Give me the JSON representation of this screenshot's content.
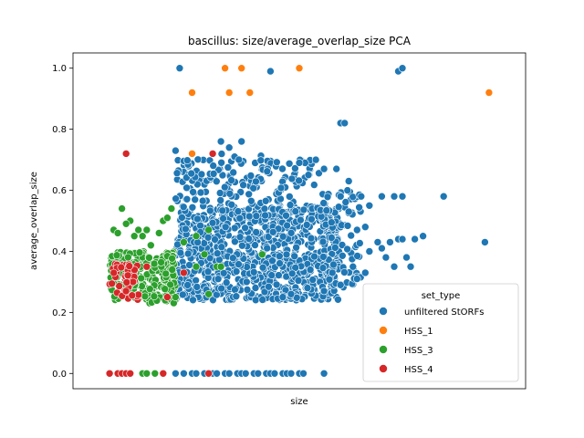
{
  "chart_data": {
    "type": "scatter",
    "title": "bascillus: size/average_overlap_size PCA",
    "xlabel": "size",
    "ylabel": "average_overlap_size",
    "ylim": [
      -0.05,
      1.05
    ],
    "xlim": [
      0,
      100
    ],
    "y_ticks": [
      "0.0",
      "0.2",
      "0.4",
      "0.6",
      "0.8",
      "1.0"
    ],
    "y_tick_values": [
      0.0,
      0.2,
      0.4,
      0.6,
      0.8,
      1.0
    ],
    "grid": false,
    "legend": {
      "title": "set_type",
      "placement": "lower-right"
    },
    "series": [
      {
        "name": "unfiltered StORFs",
        "color": "#1f77b4",
        "clusters": [
          {
            "x": [
              20,
              60
            ],
            "y": [
              0.24,
              0.55
            ],
            "n": 900
          },
          {
            "x": [
              20,
              45
            ],
            "y": [
              0.55,
              0.72
            ],
            "n": 120
          },
          {
            "x": [
              45,
              55
            ],
            "y": [
              0.5,
              0.7
            ],
            "n": 40
          },
          {
            "x": [
              55,
              65
            ],
            "y": [
              0.28,
              0.6
            ],
            "n": 80
          }
        ],
        "points": [
          {
            "x": 21,
            "y": 1.0
          },
          {
            "x": 43,
            "y": 0.99
          },
          {
            "x": 74,
            "y": 0.99
          },
          {
            "x": 75,
            "y": 1.0
          },
          {
            "x": 60,
            "y": 0.82
          },
          {
            "x": 61,
            "y": 0.82
          },
          {
            "x": 31,
            "y": 0.76
          },
          {
            "x": 36,
            "y": 0.76
          },
          {
            "x": 33,
            "y": 0.74
          },
          {
            "x": 20,
            "y": 0.73
          },
          {
            "x": 50,
            "y": 0.69
          },
          {
            "x": 54,
            "y": 0.7
          },
          {
            "x": 56,
            "y": 0.67
          },
          {
            "x": 59,
            "y": 0.67
          },
          {
            "x": 62,
            "y": 0.63
          },
          {
            "x": 60,
            "y": 0.58
          },
          {
            "x": 65,
            "y": 0.58
          },
          {
            "x": 70,
            "y": 0.58
          },
          {
            "x": 73,
            "y": 0.58
          },
          {
            "x": 75,
            "y": 0.58
          },
          {
            "x": 85,
            "y": 0.58
          },
          {
            "x": 67,
            "y": 0.55
          },
          {
            "x": 62,
            "y": 0.53
          },
          {
            "x": 64,
            "y": 0.47
          },
          {
            "x": 66,
            "y": 0.48
          },
          {
            "x": 74,
            "y": 0.44
          },
          {
            "x": 75,
            "y": 0.44
          },
          {
            "x": 78,
            "y": 0.44
          },
          {
            "x": 80,
            "y": 0.45
          },
          {
            "x": 72,
            "y": 0.43
          },
          {
            "x": 70,
            "y": 0.41
          },
          {
            "x": 67,
            "y": 0.4
          },
          {
            "x": 69,
            "y": 0.43
          },
          {
            "x": 71,
            "y": 0.38
          },
          {
            "x": 76,
            "y": 0.38
          },
          {
            "x": 95,
            "y": 0.43
          },
          {
            "x": 73,
            "y": 0.35
          },
          {
            "x": 77,
            "y": 0.35
          },
          {
            "x": 63,
            "y": 0.35
          },
          {
            "x": 66,
            "y": 0.33
          },
          {
            "x": 64,
            "y": 0.31
          },
          {
            "x": 58,
            "y": 0.33
          },
          {
            "x": 60,
            "y": 0.29
          },
          {
            "x": 56,
            "y": 0.27
          },
          {
            "x": 52,
            "y": 0.28
          },
          {
            "x": 48,
            "y": 0.26
          },
          {
            "x": 46,
            "y": 0.25
          }
        ],
        "baseline": {
          "y": 0.0,
          "x": [
            20,
            22,
            24,
            25,
            27,
            29,
            30,
            32,
            33,
            35,
            36,
            37,
            39,
            40,
            42,
            43,
            44,
            46,
            47,
            48,
            50,
            51,
            56
          ]
        }
      },
      {
        "name": "HSS_1",
        "color": "#ff7f0e",
        "points": [
          {
            "x": 32,
            "y": 1.0
          },
          {
            "x": 36,
            "y": 1.0
          },
          {
            "x": 50,
            "y": 1.0
          },
          {
            "x": 24,
            "y": 0.92
          },
          {
            "x": 33,
            "y": 0.92
          },
          {
            "x": 38,
            "y": 0.92
          },
          {
            "x": 96,
            "y": 0.92
          },
          {
            "x": 24,
            "y": 0.72
          }
        ]
      },
      {
        "name": "HSS_3",
        "color": "#2ca02c",
        "clusters": [
          {
            "x": [
              4,
              20
            ],
            "y": [
              0.23,
              0.4
            ],
            "n": 220
          }
        ],
        "points": [
          {
            "x": 7,
            "y": 0.54
          },
          {
            "x": 9,
            "y": 0.5
          },
          {
            "x": 8,
            "y": 0.49
          },
          {
            "x": 11,
            "y": 0.47
          },
          {
            "x": 13,
            "y": 0.47
          },
          {
            "x": 5,
            "y": 0.47
          },
          {
            "x": 6,
            "y": 0.46
          },
          {
            "x": 10,
            "y": 0.45
          },
          {
            "x": 12,
            "y": 0.45
          },
          {
            "x": 14,
            "y": 0.42
          },
          {
            "x": 16,
            "y": 0.46
          },
          {
            "x": 17,
            "y": 0.5
          },
          {
            "x": 18,
            "y": 0.51
          },
          {
            "x": 19,
            "y": 0.54
          },
          {
            "x": 25,
            "y": 0.45
          },
          {
            "x": 28,
            "y": 0.47
          },
          {
            "x": 22,
            "y": 0.43
          },
          {
            "x": 27,
            "y": 0.39
          },
          {
            "x": 30,
            "y": 0.35
          },
          {
            "x": 31,
            "y": 0.35
          },
          {
            "x": 41,
            "y": 0.39
          },
          {
            "x": 25,
            "y": 0.35
          },
          {
            "x": 28,
            "y": 0.26
          },
          {
            "x": 20,
            "y": 0.25
          }
        ],
        "baseline": {
          "y": 0.0,
          "x": [
            4,
            6,
            8,
            9,
            12,
            13,
            15
          ]
        }
      },
      {
        "name": "HSS_4",
        "color": "#d62728",
        "clusters": [
          {
            "x": [
              4,
              11
            ],
            "y": [
              0.24,
              0.36
            ],
            "n": 45
          }
        ],
        "points": [
          {
            "x": 8,
            "y": 0.72
          },
          {
            "x": 29,
            "y": 0.72
          },
          {
            "x": 22,
            "y": 0.33
          },
          {
            "x": 13,
            "y": 0.35
          },
          {
            "x": 18,
            "y": 0.25
          }
        ],
        "baseline": {
          "y": 0.0,
          "x": [
            4,
            6,
            7,
            8,
            9,
            17,
            28
          ]
        }
      }
    ]
  }
}
